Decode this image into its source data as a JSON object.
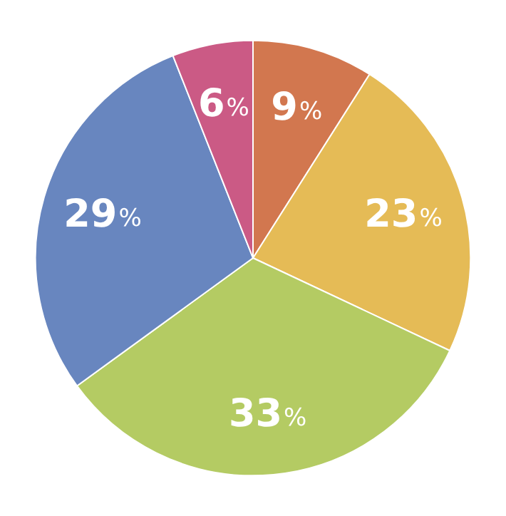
{
  "chart_data": {
    "type": "pie",
    "categories": [
      null,
      null,
      null,
      null,
      null
    ],
    "values": [
      9,
      23,
      33,
      29,
      6
    ],
    "colors": [
      "#d2774f",
      "#e5bb56",
      "#b4cb63",
      "#6886bf",
      "#cb5a85"
    ],
    "value_labels": [
      "9%",
      "23%",
      "33%",
      "29%",
      "6%"
    ]
  }
}
